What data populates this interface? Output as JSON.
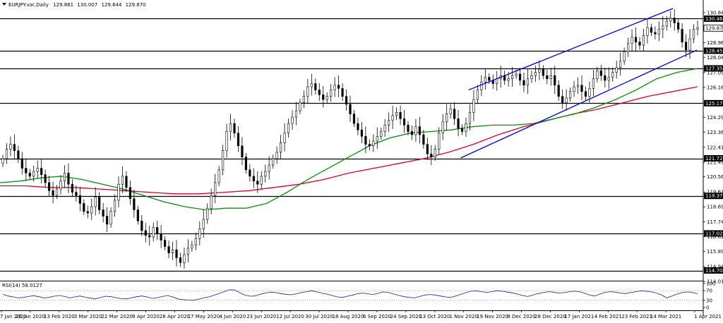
{
  "chart_data": {
    "type": "candlestick",
    "title": "EURJPY.var,Daily",
    "ohlc": {
      "open": "129.881",
      "high": "130.007",
      "low": "129.644",
      "close": "129.870"
    },
    "price_axis": {
      "ylim": [
        114.065,
        131.1
      ],
      "ticks": [
        "130.840",
        "129.870",
        "128.965",
        "128.040",
        "127.090",
        "126.165",
        "125.215",
        "124.290",
        "123.365",
        "122.415",
        "121.490",
        "120.565",
        "119.615",
        "118.690",
        "117.740",
        "116.815",
        "115.890",
        "114.940",
        "114.015"
      ]
    },
    "horizontal_levels": [
      {
        "label": "130.462",
        "value": 130.462
      },
      {
        "label": "128.453",
        "value": 128.453
      },
      {
        "label": "127.350",
        "value": 127.35
      },
      {
        "label": "125.171",
        "value": 125.171
      },
      {
        "label": "121.720",
        "value": 121.72
      },
      {
        "label": "119.372",
        "value": 119.372
      },
      {
        "label": "117.024",
        "value": 117.024
      },
      {
        "label": "114.704",
        "value": 114.704
      }
    ],
    "current_price": {
      "label": "129.870",
      "value": 129.87
    },
    "x_axis": {
      "labels": [
        "7 Jan 2020",
        "26 Jan 2020",
        "13 Feb 2020",
        "3 Mar 2020",
        "22 Mar 2020",
        "9 Apr 2020",
        "28 Apr 2020",
        "17 May 2020",
        "4 Jun 2020",
        "23 Jun 2020",
        "12 Jul 2020",
        "30 Jul 2020",
        "18 Aug 2020",
        "6 Sep 2020",
        "24 Sep 2020",
        "13 Oct 2020",
        "1 Nov 2020",
        "19 Nov 2020",
        "8 Dec 2020",
        "28 Dec 2020",
        "17 Jan 2021",
        "4 Feb 2021",
        "23 Feb 2021",
        "14 Mar 2021",
        "1 Apr 2021"
      ]
    },
    "closes": [
      121.7,
      122.3,
      122.6,
      122.2,
      121.7,
      121.1,
      120.8,
      120.6,
      120.9,
      121.1,
      120.7,
      120.2,
      119.7,
      119.4,
      119.8,
      120.3,
      120.8,
      120.1,
      119.6,
      119.4,
      118.9,
      118.4,
      118.3,
      118.7,
      119.3,
      118.5,
      118.1,
      117.6,
      118.4,
      119.1,
      120.1,
      120.6,
      119.9,
      119.2,
      118.5,
      117.8,
      117.2,
      116.9,
      116.8,
      117.4,
      117.0,
      116.6,
      116.2,
      115.8,
      116.0,
      115.5,
      115.2,
      115.7,
      116.1,
      116.3,
      116.7,
      117.3,
      117.9,
      118.6,
      119.4,
      120.2,
      121.0,
      122.2,
      123.4,
      123.9,
      123.3,
      122.5,
      121.8,
      121.0,
      120.6,
      120.3,
      120.1,
      120.6,
      120.9,
      121.3,
      121.7,
      122.1,
      122.7,
      123.3,
      123.9,
      124.3,
      124.7,
      125.2,
      125.6,
      126.2,
      126.4,
      126.0,
      125.7,
      125.4,
      125.6,
      126.0,
      126.3,
      126.1,
      125.6,
      125.1,
      124.5,
      123.9,
      123.5,
      123.1,
      122.6,
      122.5,
      122.8,
      123.1,
      123.4,
      123.8,
      124.1,
      124.4,
      124.6,
      124.2,
      123.8,
      123.4,
      123.2,
      123.7,
      123.2,
      122.6,
      122.0,
      121.8,
      122.3,
      123.3,
      124.0,
      124.5,
      124.8,
      124.2,
      123.6,
      123.4,
      123.9,
      124.6,
      125.4,
      126.0,
      126.5,
      126.8,
      126.6,
      126.4,
      126.7,
      126.9,
      126.6,
      126.7,
      126.9,
      127.0,
      126.6,
      126.3,
      126.7,
      126.9,
      127.1,
      127.3,
      126.9,
      126.7,
      126.9,
      126.3,
      125.6,
      125.2,
      125.5,
      125.9,
      126.2,
      126.3,
      125.9,
      125.6,
      126.1,
      126.7,
      127.2,
      126.9,
      126.6,
      126.8,
      127.1,
      127.4,
      127.8,
      128.4,
      128.9,
      129.3,
      129.0,
      128.8,
      129.4,
      129.9,
      129.6,
      129.5,
      129.8,
      130.0,
      130.3,
      130.5,
      130.2,
      129.8,
      129.0,
      128.5,
      129.2,
      129.8,
      129.9
    ],
    "sma_green": [
      120.2,
      120.3,
      120.5,
      120.6,
      120.4,
      120.1,
      119.8,
      119.4,
      119.0,
      118.7,
      118.5,
      118.6,
      118.6,
      118.9,
      119.6,
      120.4,
      121.1,
      121.8,
      122.5,
      123.0,
      123.3,
      123.4,
      123.5,
      123.7,
      123.8,
      123.8,
      123.9,
      124.2,
      124.5,
      124.9,
      125.4,
      126.0,
      126.7,
      127.1,
      127.35
    ],
    "sma_red": [
      120.0,
      120.0,
      119.9,
      119.9,
      119.8,
      119.7,
      119.6,
      119.5,
      119.5,
      119.6,
      119.7,
      119.9,
      120.1,
      120.4,
      120.8,
      121.1,
      121.4,
      121.7,
      122.1,
      122.6,
      123.2,
      123.7,
      124.1,
      124.5,
      124.8,
      125.2,
      125.6,
      125.9,
      126.2
    ],
    "channel": {
      "upper": [
        [
          0.6662,
          126.0
        ],
        [
          0.957,
          131.1
        ]
      ],
      "lower": [
        [
          0.6553,
          121.75
        ],
        [
          0.991,
          128.5
        ]
      ]
    },
    "rsi": {
      "label": "RSI(14) 58.0127",
      "ylim": [
        0,
        100
      ],
      "ticks": [
        "100",
        "70",
        "30",
        "0"
      ],
      "levels": [
        70,
        30
      ],
      "values": [
        55,
        48,
        44,
        40,
        42,
        46,
        49,
        45,
        40,
        42,
        47,
        50,
        46,
        40,
        44,
        48,
        43,
        39,
        36,
        42,
        47,
        45,
        41,
        37,
        36,
        40,
        45,
        48,
        44,
        38,
        41,
        46,
        50,
        44,
        36,
        33,
        31,
        30,
        34,
        40,
        44,
        51,
        58,
        66,
        74,
        73,
        62,
        52,
        47,
        48,
        55,
        60,
        64,
        62,
        58,
        55,
        53,
        57,
        62,
        66,
        70,
        65,
        60,
        56,
        50,
        44,
        42,
        47,
        52,
        58,
        60,
        57,
        54,
        60,
        65,
        62,
        56,
        50,
        45,
        42,
        40,
        46,
        52,
        54,
        52,
        48,
        44,
        42,
        48,
        55,
        62,
        68,
        69,
        66,
        63,
        66,
        70,
        68,
        64,
        61,
        56,
        50,
        46,
        52,
        58,
        62,
        66,
        64,
        60,
        62,
        65,
        68,
        66,
        60,
        52,
        48,
        56,
        63,
        66,
        64,
        60,
        58,
        62,
        66,
        69,
        68,
        65,
        60,
        52,
        40,
        48,
        56,
        62,
        65,
        62,
        58
      ]
    }
  }
}
